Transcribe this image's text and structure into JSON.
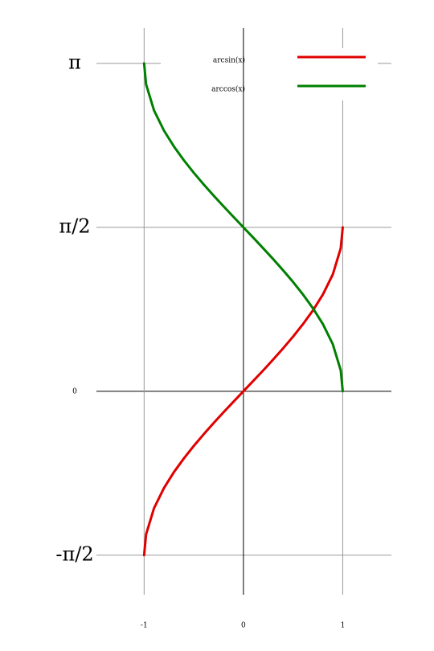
{
  "chart_data": {
    "type": "line",
    "x": [
      -1,
      -0.98,
      -0.9,
      -0.8,
      -0.7,
      -0.6,
      -0.5,
      -0.4,
      -0.3,
      -0.2,
      -0.1,
      0,
      0.1,
      0.2,
      0.3,
      0.4,
      0.5,
      0.6,
      0.7,
      0.8,
      0.9,
      0.98,
      1
    ],
    "series": [
      {
        "name": "arcsin(x)",
        "color": "#e00000",
        "values": [
          -1.571,
          -1.371,
          -1.12,
          -0.927,
          -0.775,
          -0.644,
          -0.524,
          -0.412,
          -0.305,
          -0.201,
          -0.1,
          0,
          0.1,
          0.201,
          0.305,
          0.412,
          0.524,
          0.644,
          0.775,
          0.927,
          1.12,
          1.371,
          1.571
        ]
      },
      {
        "name": "arccos(x)",
        "color": "#008000",
        "values": [
          3.142,
          2.941,
          2.691,
          2.498,
          2.346,
          2.214,
          2.094,
          1.982,
          1.875,
          1.772,
          1.671,
          1.571,
          1.471,
          1.369,
          1.266,
          1.159,
          1.047,
          0.927,
          0.795,
          0.644,
          0.451,
          0.2,
          0
        ]
      }
    ],
    "xlim": [
      -1.48,
      1.49
    ],
    "ylim": [
      -1.95,
      3.48
    ],
    "xticks": [
      -1,
      0,
      1
    ],
    "yticks": [
      {
        "value": -1.5708,
        "label": "-π/2"
      },
      0,
      {
        "value": 1.5708,
        "label": "π/2"
      },
      {
        "value": 3.1416,
        "label": "π"
      }
    ],
    "grid": true,
    "legend": "upper right"
  }
}
